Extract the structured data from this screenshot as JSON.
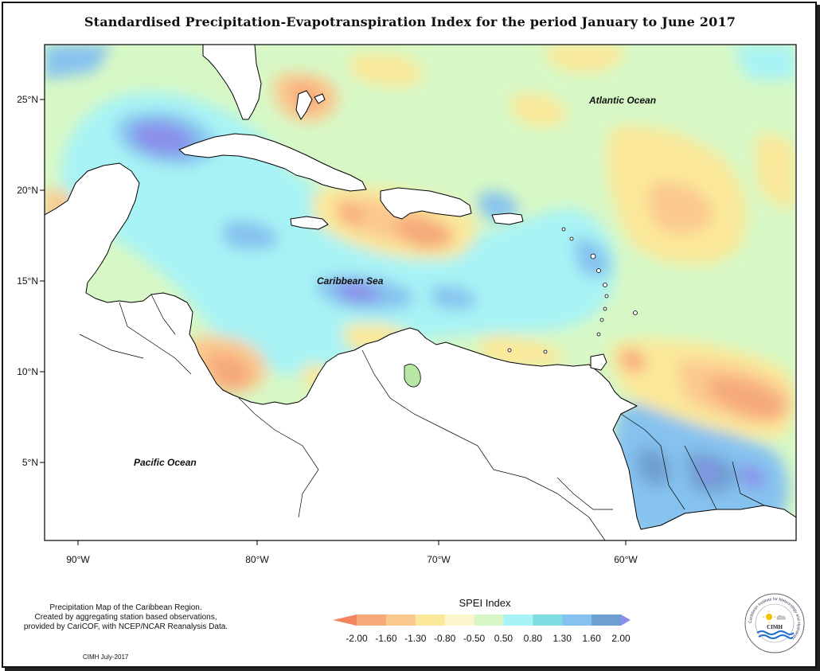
{
  "title": "Standardised Precipitation-Evapotranspiration Index for the period January to June 2017",
  "lat_ticks": [
    "25°N",
    "20°N",
    "15°N",
    "10°N",
    "5°N"
  ],
  "lon_ticks": [
    "90°W",
    "80°W",
    "70°W",
    "60°W"
  ],
  "ocean_labels": {
    "atlantic": "Atlantic Ocean",
    "caribbean": "Caribbean Sea",
    "pacific": "Pacific Ocean"
  },
  "legend": {
    "title": "SPEI Index",
    "breaks": [
      "-2.00",
      "-1.60",
      "-1.30",
      "-0.80",
      "-0.50",
      "0.50",
      "0.80",
      "1.30",
      "1.60",
      "2.00"
    ],
    "colors": [
      "#f0855f",
      "#f6a97a",
      "#fbc98f",
      "#fbe89a",
      "#fdf6cc",
      "#d7f8c6",
      "#a8f3f5",
      "#7edde0",
      "#86c2ef",
      "#6e9fd2",
      "#8a8fea"
    ]
  },
  "credit_lines": [
    "Precipitation Map of the Caribbean Region.",
    "Created by aggregating station based observations,",
    "provided by CariCOF, with NCEP/NCAR Reanalysis Data."
  ],
  "stamp": "CIMH July-2017",
  "logo": {
    "label": "CIMH",
    "ring_text": "Caribbean Institute for Meteorology and Hydrology"
  },
  "colors": {
    "background": "#d7f8c6",
    "land": "#ffffff",
    "coast": "#000000"
  }
}
